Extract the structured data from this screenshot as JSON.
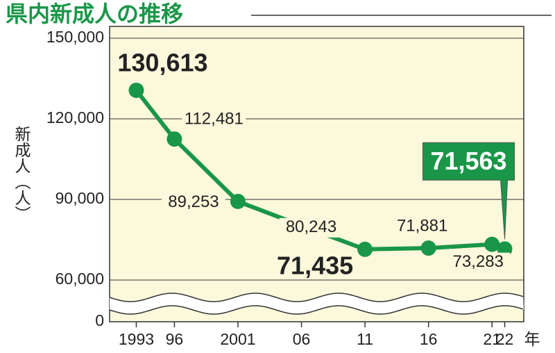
{
  "chart_data": {
    "type": "line",
    "title": "県内新成人の推移",
    "y_label": "新成人（人）",
    "x_unit": "年",
    "x": [
      1993,
      1996,
      2001,
      2006,
      2011,
      2016,
      2021,
      2022
    ],
    "series": [
      {
        "name": "新成人",
        "color": "#1a9648",
        "values": [
          130613,
          112481,
          89253,
          80243,
          71435,
          71881,
          73283,
          71563
        ],
        "value_labels": [
          "130,613",
          "112,481",
          "89,253",
          "80,243",
          "71,435",
          "71,881",
          "73,283",
          "71,563"
        ]
      }
    ],
    "xlim": [
      1990.9,
      2023.5
    ],
    "xticks": [
      1993,
      {
        "value": 1996,
        "label": "96"
      },
      2001,
      {
        "value": 2006,
        "label": "06"
      },
      {
        "value": 2011,
        "label": "11"
      },
      {
        "value": 2016,
        "label": "16"
      },
      {
        "value": 2021,
        "label": "21"
      },
      {
        "value": 2022,
        "label": "22"
      }
    ],
    "ylim": [
      0,
      150000
    ],
    "yticks": [
      0,
      {
        "value": 60000,
        "label": "60,000"
      },
      {
        "value": 90000,
        "label": "90,000"
      },
      {
        "value": 120000,
        "label": "120,000"
      },
      {
        "value": 150000,
        "label": "150,000"
      }
    ],
    "axis_break": true,
    "grid": true,
    "background": "#fcf8dc"
  }
}
